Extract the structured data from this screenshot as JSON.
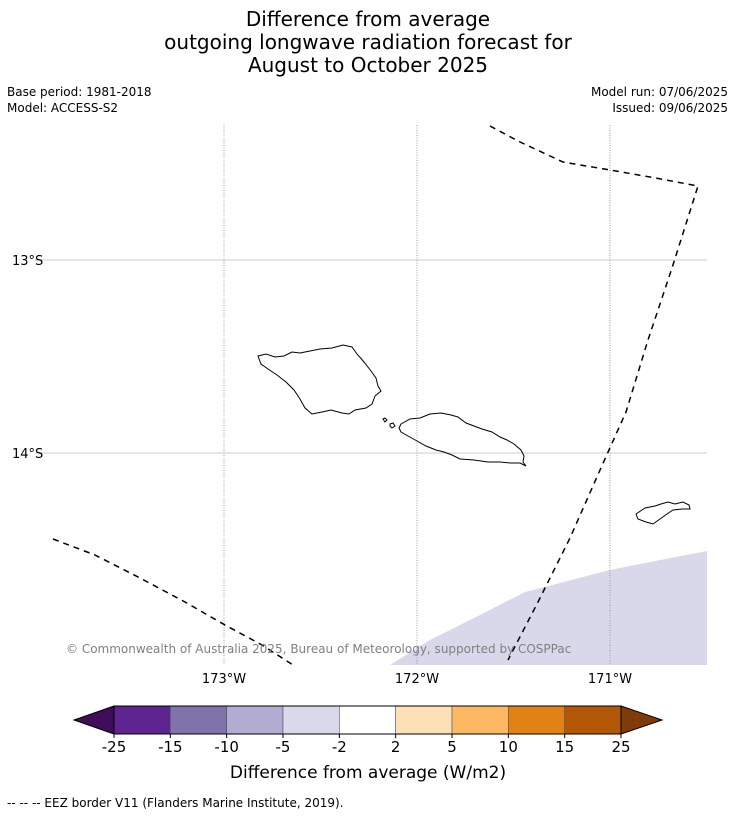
{
  "title": {
    "line1": "Difference from average",
    "line2": "outgoing longwave radiation forecast for",
    "line3": "August to October 2025"
  },
  "meta": {
    "base_period": "Base period: 1981-2018",
    "model": "Model: ACCESS-S2",
    "model_run": "Model run: 07/06/2025",
    "issued": "Issued: 09/06/2025"
  },
  "map": {
    "lat_labels": [
      "13°S",
      "14°S"
    ],
    "lon_labels": [
      "173°W",
      "172°W",
      "171°W"
    ],
    "copyright": "© Commonwealth of Australia 2025, Bureau of Meteorology, supported by COSPPac",
    "anomaly_fill_color": "#d8d8ea"
  },
  "colorbar": {
    "label": "Difference from average (W/m2)",
    "ticks": [
      "-25",
      "-15",
      "-10",
      "-5",
      "-2",
      "2",
      "5",
      "10",
      "15",
      "25"
    ],
    "under_color": "#3f0d5a",
    "over_color": "#7f3b08",
    "colors": [
      "#5e2590",
      "#8073ac",
      "#b2abd2",
      "#d8daeb",
      "#ffffff",
      "#fee0b6",
      "#fdb863",
      "#e08214",
      "#b35806"
    ]
  },
  "footnote": "--  --  -- EEZ border V11 (Flanders Marine Institute, 2019)."
}
